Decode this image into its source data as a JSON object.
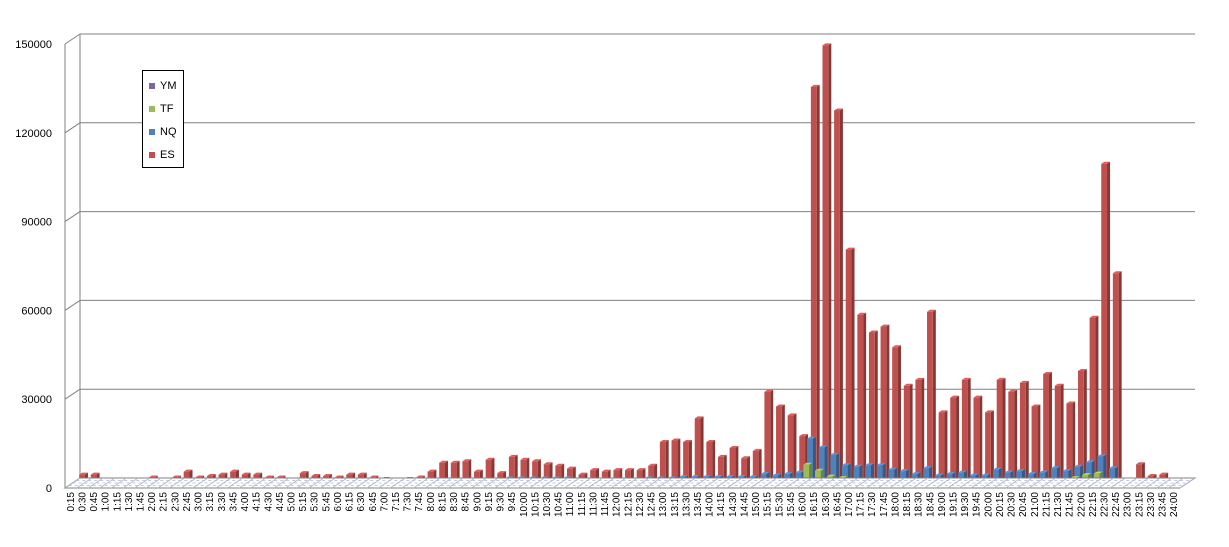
{
  "chart_data": {
    "type": "bar",
    "stacked_3d": true,
    "title": "",
    "xlabel": "",
    "ylabel": "",
    "ylim": [
      0,
      150000
    ],
    "yticks": [
      0,
      30000,
      60000,
      90000,
      120000,
      150000
    ],
    "grid": "horizontal",
    "legend_position": "upper-left",
    "categories": [
      "0:15",
      "0:30",
      "0:45",
      "1:00",
      "1:15",
      "1:30",
      "1:45",
      "2:00",
      "2:15",
      "2:30",
      "2:45",
      "3:00",
      "3:15",
      "3:30",
      "3:45",
      "4:00",
      "4:15",
      "4:30",
      "4:45",
      "5:00",
      "5:15",
      "5:30",
      "5:45",
      "6:00",
      "6:15",
      "6:30",
      "6:45",
      "7:00",
      "7:15",
      "7:30",
      "7:45",
      "8:00",
      "8:15",
      "8:30",
      "8:45",
      "9:00",
      "9:15",
      "9:30",
      "9:45",
      "10:00",
      "10:15",
      "10:30",
      "10:45",
      "11:00",
      "11:15",
      "11:30",
      "11:45",
      "12:00",
      "12:15",
      "12:30",
      "12:45",
      "13:00",
      "13:15",
      "13:30",
      "13:45",
      "14:00",
      "14:15",
      "14:30",
      "14:45",
      "15:00",
      "15:15",
      "15:30",
      "15:45",
      "16:00",
      "16:15",
      "16:30",
      "16:45",
      "17:00",
      "17:15",
      "17:30",
      "17:45",
      "18:00",
      "18:15",
      "18:30",
      "18:45",
      "19:00",
      "19:15",
      "19:30",
      "19:45",
      "20:00",
      "20:15",
      "20:30",
      "20:45",
      "21:00",
      "21:15",
      "21:30",
      "21:45",
      "22:00",
      "22:15",
      "22:30",
      "22:45",
      "23:00",
      "23:15",
      "23:30",
      "23:45",
      "24:00"
    ],
    "series": [
      {
        "name": "ES",
        "color": "#c0504d",
        "values": [
          2000,
          2000,
          0,
          0,
          0,
          0,
          1000,
          0,
          1000,
          3000,
          1000,
          1500,
          2000,
          3000,
          2000,
          2000,
          1000,
          1000,
          0,
          2500,
          1500,
          1500,
          1000,
          2000,
          2000,
          1000,
          500,
          0,
          500,
          1000,
          3000,
          6000,
          6000,
          6500,
          3000,
          7000,
          2500,
          8000,
          7000,
          6500,
          5500,
          5000,
          4000,
          2000,
          3500,
          3000,
          3500,
          3500,
          3500,
          5000,
          13000,
          13500,
          13000,
          21000,
          13000,
          8000,
          11000,
          7500,
          10000,
          30000,
          25000,
          22000,
          15000,
          133000,
          147000,
          125000,
          78000,
          56000,
          50000,
          52000,
          45000,
          32000,
          34000,
          57000,
          23000,
          28000,
          34000,
          28000,
          23000,
          34000,
          30000,
          33000,
          25000,
          36000,
          32000,
          26000,
          37000,
          55000,
          107000,
          70000,
          0,
          5500,
          1500,
          2000,
          0,
          0
        ]
      },
      {
        "name": "NQ",
        "color": "#4f81bd",
        "values": [
          0,
          0,
          0,
          0,
          0,
          0,
          0,
          0,
          0,
          0,
          0,
          0,
          0,
          0,
          0,
          0,
          0,
          0,
          0,
          0,
          0,
          0,
          0,
          0,
          0,
          0,
          0,
          0,
          0,
          500,
          500,
          1000,
          1000,
          1000,
          1000,
          1000,
          1000,
          1500,
          1500,
          1500,
          1500,
          1500,
          1500,
          1000,
          1000,
          1000,
          1000,
          1000,
          1000,
          1500,
          1500,
          1500,
          2000,
          2000,
          2000,
          2000,
          2000,
          2000,
          2000,
          3000,
          2500,
          3000,
          3500,
          15000,
          12000,
          9500,
          6000,
          5500,
          6000,
          6000,
          4500,
          4000,
          3000,
          5000,
          2500,
          3000,
          3500,
          2500,
          2500,
          4500,
          3500,
          4000,
          3000,
          3500,
          5000,
          4000,
          5500,
          7000,
          9000,
          5000,
          0,
          0,
          0,
          0,
          0,
          0
        ]
      },
      {
        "name": "TF",
        "color": "#9bbb59",
        "values": [
          0,
          0,
          0,
          0,
          0,
          0,
          0,
          0,
          0,
          0,
          0,
          0,
          0,
          0,
          0,
          0,
          0,
          0,
          0,
          0,
          0,
          0,
          0,
          0,
          0,
          0,
          0,
          0,
          0,
          0,
          0,
          0,
          0,
          0,
          0,
          0,
          0,
          0,
          0,
          0,
          0,
          0,
          0,
          0,
          0,
          0,
          0,
          0,
          0,
          0,
          0,
          0,
          0,
          0,
          0,
          0,
          0,
          0,
          0,
          500,
          500,
          500,
          500,
          7000,
          5000,
          3000,
          2500,
          2000,
          2000,
          2000,
          1500,
          1500,
          1500,
          1500,
          1000,
          1000,
          1000,
          1000,
          1000,
          1500,
          1500,
          1500,
          1000,
          1500,
          2000,
          2000,
          2500,
          3500,
          4000,
          1500,
          0,
          0,
          0,
          0,
          0,
          0
        ]
      },
      {
        "name": "YM",
        "color": "#8064a2",
        "values": [
          0,
          0,
          0,
          0,
          0,
          0,
          0,
          0,
          0,
          0,
          0,
          0,
          0,
          0,
          0,
          0,
          0,
          0,
          0,
          0,
          0,
          0,
          0,
          0,
          0,
          0,
          0,
          0,
          0,
          0,
          0,
          0,
          0,
          0,
          0,
          0,
          0,
          0,
          0,
          0,
          0,
          0,
          0,
          0,
          0,
          0,
          0,
          0,
          0,
          0,
          0,
          0,
          0,
          0,
          0,
          0,
          0,
          0,
          0,
          0,
          0,
          0,
          0,
          1000,
          800,
          600,
          400,
          400,
          400,
          400,
          300,
          300,
          300,
          300,
          200,
          200,
          200,
          200,
          200,
          300,
          300,
          300,
          200,
          300,
          400,
          400,
          500,
          600,
          800,
          300,
          0,
          0,
          0,
          0,
          0,
          0
        ]
      }
    ]
  },
  "legend_items": [
    {
      "label": "YM",
      "color": "#8064a2"
    },
    {
      "label": "TF",
      "color": "#9bbb59"
    },
    {
      "label": "NQ",
      "color": "#4f81bd"
    },
    {
      "label": "ES",
      "color": "#c0504d"
    }
  ]
}
